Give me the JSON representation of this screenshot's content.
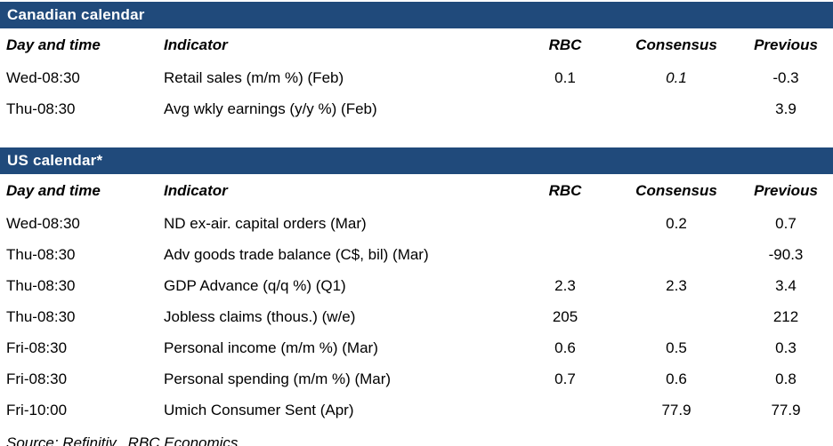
{
  "theme": {
    "bar_background": "#204A7B",
    "bar_text_color": "#FFFFFF",
    "body_text_color": "#000000",
    "page_background": "#FFFFFF"
  },
  "columns": [
    "Day and time",
    "Indicator",
    "RBC",
    "Consensus",
    "Previous"
  ],
  "tables": [
    {
      "title": "Canadian calendar",
      "rows": [
        {
          "day": "Wed-08:30",
          "indicator": "Retail sales (m/m %) (Feb)",
          "rbc": "0.1",
          "consensus": "0.1",
          "consensus_italic": true,
          "previous": "-0.3"
        },
        {
          "day": "Thu-08:30",
          "indicator": "Avg wkly earnings (y/y %) (Feb)",
          "rbc": "",
          "consensus": "",
          "previous": "3.9"
        }
      ]
    },
    {
      "title": "US calendar*",
      "rows": [
        {
          "day": "Wed-08:30",
          "indicator": "ND ex-air. capital orders (Mar)",
          "rbc": "",
          "consensus": "0.2",
          "previous": "0.7"
        },
        {
          "day": "Thu-08:30",
          "indicator": "Adv goods trade balance (C$, bil) (Mar)",
          "rbc": "",
          "consensus": "",
          "previous": "-90.3"
        },
        {
          "day": "Thu-08:30",
          "indicator": "GDP Advance (q/q %) (Q1)",
          "rbc": "2.3",
          "consensus": "2.3",
          "previous": "3.4"
        },
        {
          "day": "Thu-08:30",
          "indicator": "Jobless claims (thous.) (w/e)",
          "rbc": "205",
          "consensus": "",
          "previous": "212"
        },
        {
          "day": "Fri-08:30",
          "indicator": "Personal income (m/m %) (Mar)",
          "rbc": "0.6",
          "consensus": "0.5",
          "previous": "0.3"
        },
        {
          "day": "Fri-08:30",
          "indicator": "Personal spending (m/m %) (Mar)",
          "rbc": "0.7",
          "consensus": "0.6",
          "previous": "0.8"
        },
        {
          "day": "Fri-10:00",
          "indicator": "Umich Consumer Sent (Apr)",
          "rbc": "",
          "consensus": "77.9",
          "previous": "77.9"
        }
      ]
    }
  ],
  "footer": {
    "source": "Source: Refinitiv,  RBC Economics"
  }
}
